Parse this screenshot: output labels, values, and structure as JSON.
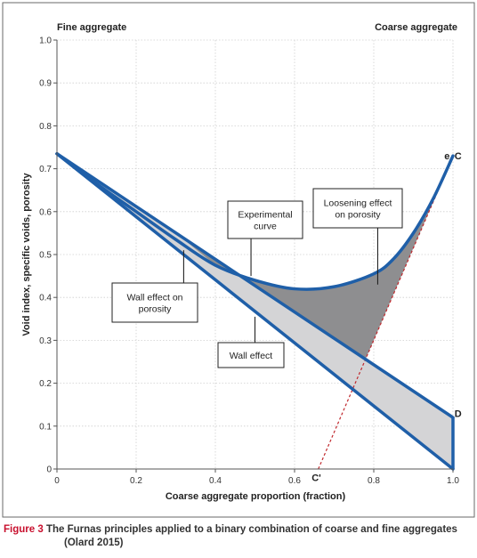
{
  "colors": {
    "line": "#1f5fa8",
    "light_fill": "#d4d4d6",
    "dark_fill": "#8e8e90",
    "dashed": "#c0282d",
    "caption_accent": "#c8102e",
    "axis": "#555555",
    "text": "#222222"
  },
  "chart_data": {
    "type": "line",
    "title": "",
    "xlabel": "Coarse aggregate proportion (fraction)",
    "ylabel": "Void index, specific voids, porosity",
    "xlim": [
      0,
      1
    ],
    "ylim": [
      0,
      1
    ],
    "x_ticks": [
      0,
      0.2,
      0.4,
      0.6,
      0.8,
      1.0
    ],
    "x_tick_labels": [
      "0",
      "0.2",
      "0.4",
      "0.6",
      "0.8",
      "1.0"
    ],
    "y_ticks": [
      0,
      0.1,
      0.2,
      0.3,
      0.4,
      0.5,
      0.6,
      0.7,
      0.8,
      0.9,
      1.0
    ],
    "y_tick_labels": [
      "0",
      "0.1",
      "0.2",
      "0.3",
      "0.4",
      "0.5",
      "0.6",
      "0.7",
      "0.8",
      "0.9",
      "1.0"
    ],
    "grid": true,
    "top_left_label": "Fine aggregate",
    "top_right_label": "Coarse aggregate",
    "series": [
      {
        "key": "lower_line",
        "x": [
          0,
          1.0
        ],
        "y": [
          0.735,
          0.0
        ]
      },
      {
        "key": "upper_line",
        "x": [
          0,
          1.0
        ],
        "y": [
          0.735,
          0.12
        ]
      },
      {
        "key": "right_edge",
        "x": [
          1.0,
          1.0
        ],
        "y": [
          0.0,
          0.12
        ]
      },
      {
        "key": "experimental_curve",
        "x": [
          0.0,
          0.1,
          0.2,
          0.3,
          0.4,
          0.5,
          0.6,
          0.7,
          0.8,
          0.85,
          0.9,
          0.95,
          1.0
        ],
        "y": [
          0.735,
          0.665,
          0.6,
          0.535,
          0.475,
          0.44,
          0.42,
          0.425,
          0.455,
          0.49,
          0.55,
          0.63,
          0.73
        ]
      },
      {
        "key": "dashed_line",
        "x": [
          0.66,
          1.0
        ],
        "y": [
          0.0,
          0.73
        ]
      }
    ],
    "point_labels": [
      {
        "text": "e",
        "x": 0.985,
        "y": 0.73
      },
      {
        "text": "C",
        "x": 1.013,
        "y": 0.73
      },
      {
        "text": "D",
        "x": 1.013,
        "y": 0.13
      },
      {
        "text": "C'",
        "x": 0.655,
        "y": -0.02
      }
    ],
    "annotations": [
      {
        "lines": [
          "Experimental",
          "curve"
        ],
        "target_x": 0.49,
        "target_y": 0.45
      },
      {
        "lines": [
          "Loosening effect",
          "on porosity"
        ],
        "target_x": 0.81,
        "target_y": 0.43
      },
      {
        "lines": [
          "Wall effect on",
          "porosity"
        ],
        "target_x": 0.32,
        "target_y": 0.51
      },
      {
        "lines": [
          "Wall effect"
        ],
        "target_x": 0.5,
        "target_y": 0.355
      }
    ]
  },
  "caption": {
    "figure_number": "Figure 3",
    "line1": "The Furnas principles applied to a binary combination of coarse and fine aggregates",
    "line2": "(Olard 2015)"
  }
}
